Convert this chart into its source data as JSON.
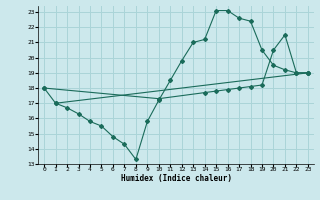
{
  "xlabel": "Humidex (Indice chaleur)",
  "bg_color": "#cce8ec",
  "grid_color": "#aad4d8",
  "line_color": "#1a6b5a",
  "xlim": [
    -0.5,
    23.5
  ],
  "ylim": [
    13,
    23.4
  ],
  "xticks": [
    0,
    1,
    2,
    3,
    4,
    5,
    6,
    7,
    8,
    9,
    10,
    11,
    12,
    13,
    14,
    15,
    16,
    17,
    18,
    19,
    20,
    21,
    22,
    23
  ],
  "yticks": [
    13,
    14,
    15,
    16,
    17,
    18,
    19,
    20,
    21,
    22,
    23
  ],
  "line1_x": [
    0,
    1,
    2,
    3,
    4,
    5,
    6,
    7,
    8,
    9,
    10,
    11,
    12,
    13,
    14,
    15,
    16,
    17,
    18,
    19,
    20,
    21,
    22,
    23
  ],
  "line1_y": [
    18.0,
    17.0,
    16.7,
    16.3,
    15.8,
    15.5,
    14.8,
    14.3,
    13.3,
    15.8,
    17.2,
    18.5,
    19.8,
    21.0,
    21.2,
    23.1,
    23.1,
    22.6,
    22.4,
    20.5,
    19.5,
    19.2,
    19.0,
    19.0
  ],
  "line2_x": [
    0,
    10,
    14,
    15,
    16,
    17,
    18,
    19,
    20,
    21,
    22,
    23
  ],
  "line2_y": [
    18.0,
    17.3,
    17.7,
    17.8,
    17.9,
    18.0,
    18.1,
    18.2,
    20.5,
    21.5,
    19.0,
    19.0
  ],
  "line3_x": [
    1,
    23
  ],
  "line3_y": [
    17.0,
    19.0
  ]
}
